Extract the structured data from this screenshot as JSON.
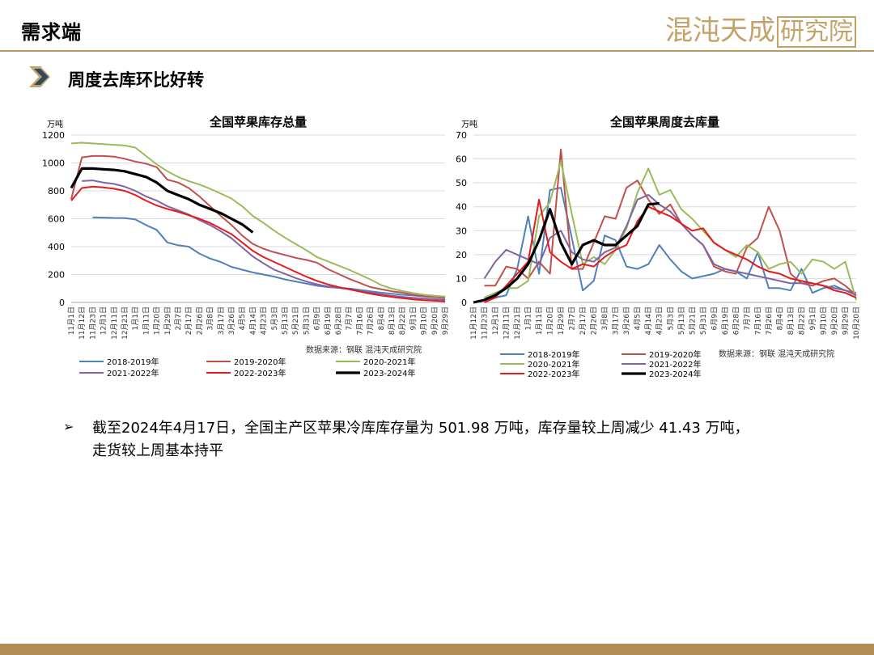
{
  "header": {
    "title": "需求端",
    "logo": "混沌天成研究院",
    "logo_main": "混沌天成",
    "logo_box": "研究院"
  },
  "section": {
    "title": "周度去库环比好转"
  },
  "colors": {
    "2018-2019年": "#4e81bd",
    "2019-2020年": "#c0504d",
    "2020-2021年": "#9bbb59",
    "2021-2022年": "#8064a2",
    "2022-2023年": "#e41a1c",
    "2023-2024年": "#000000",
    "accent": "#b89a5e"
  },
  "bullet": {
    "line1": "截至2024年4月17日，全国主产区苹果冷库库存量为 501.98 万吨，库存量较上周减少 41.43 万吨，",
    "line2": "走货较上周基本持平"
  },
  "chart_data": [
    {
      "type": "line",
      "title": "全国苹果库存总量",
      "ylabel": "万吨",
      "ylim": [
        0,
        1200
      ],
      "yticks": [
        0,
        200,
        400,
        600,
        800,
        1000,
        1200
      ],
      "xlabels": [
        "11月1日",
        "11月12日",
        "11月23日",
        "12月1日",
        "12月11日",
        "12月21日",
        "1月1日",
        "1月11日",
        "1月20日",
        "1月29日",
        "2月7日",
        "2月17日",
        "2月26日",
        "3月8日",
        "3月17日",
        "3月26日",
        "4月5日",
        "4月14日",
        "4月23日",
        "5月3日",
        "5月13日",
        "5月21日",
        "5月31日",
        "6月9日",
        "6月19日",
        "6月28日",
        "7月7日",
        "7月16日",
        "7月26日",
        "8月4日",
        "8月13日",
        "8月22日",
        "9月1日",
        "9月10日",
        "9月20日",
        "9月29日"
      ],
      "source": "数据来源：钢联  混沌天成研究院",
      "series": [
        {
          "name": "2018-2019年",
          "values": [
            null,
            null,
            610,
            608,
            606,
            605,
            595,
            555,
            520,
            430,
            410,
            400,
            350,
            315,
            290,
            255,
            235,
            215,
            200,
            185,
            165,
            150,
            135,
            120,
            110,
            105,
            100,
            90,
            80,
            70,
            62,
            55,
            50,
            43,
            38,
            32
          ]
        },
        {
          "name": "2019-2020年",
          "values": [
            740,
            1040,
            1050,
            1050,
            1045,
            1030,
            1010,
            995,
            970,
            880,
            860,
            820,
            760,
            690,
            620,
            555,
            480,
            420,
            385,
            360,
            340,
            320,
            305,
            285,
            240,
            205,
            170,
            140,
            110,
            95,
            80,
            70,
            55,
            45,
            40,
            35
          ]
        },
        {
          "name": "2020-2021年",
          "values": [
            1140,
            1145,
            1140,
            1135,
            1130,
            1125,
            1110,
            1050,
            990,
            940,
            900,
            870,
            845,
            815,
            780,
            745,
            690,
            620,
            570,
            515,
            465,
            420,
            375,
            325,
            295,
            265,
            235,
            200,
            165,
            125,
            100,
            82,
            68,
            55,
            48,
            42
          ]
        },
        {
          "name": "2021-2022年",
          "values": [
            null,
            870,
            875,
            860,
            850,
            830,
            800,
            760,
            730,
            690,
            660,
            630,
            590,
            555,
            510,
            460,
            395,
            330,
            280,
            235,
            205,
            175,
            150,
            130,
            115,
            105,
            95,
            82,
            70,
            58,
            48,
            40,
            33,
            28,
            24,
            20
          ]
        },
        {
          "name": "2022-2023年",
          "values": [
            730,
            820,
            830,
            825,
            815,
            800,
            770,
            730,
            695,
            670,
            650,
            625,
            600,
            570,
            530,
            490,
            430,
            370,
            325,
            290,
            255,
            220,
            185,
            155,
            130,
            110,
            95,
            78,
            62,
            50,
            40,
            30,
            22,
            16,
            12,
            8
          ]
        },
        {
          "name": "2023-2024年",
          "values": [
            820,
            960,
            960,
            955,
            950,
            940,
            920,
            900,
            860,
            800,
            770,
            740,
            700,
            670,
            640,
            600,
            560,
            501.98
          ]
        }
      ]
    },
    {
      "type": "line",
      "title": "全国苹果周度去库量",
      "ylabel": "万吨",
      "ylim": [
        0,
        70
      ],
      "yticks": [
        0,
        10,
        20,
        30,
        40,
        50,
        60,
        70
      ],
      "xlabels": [
        "11月12日",
        "11月23日",
        "12月1日",
        "12月11日",
        "12月21日",
        "1月1日",
        "1月11日",
        "1月20日",
        "1月29日",
        "2月7日",
        "2月17日",
        "2月26日",
        "3月8日",
        "3月17日",
        "3月26日",
        "4月5日",
        "4月14日",
        "4月23日",
        "5月3日",
        "5月13日",
        "5月21日",
        "5月31日",
        "6月9日",
        "6月19日",
        "6月28日",
        "7月7日",
        "7月16日",
        "7月26日",
        "8月4日",
        "8月13日",
        "8月22日",
        "9月1日",
        "9月10日",
        "9月20日",
        "9月29日",
        "10月20日"
      ],
      "source": "数据来源：钢联  混沌天成研究院",
      "series": [
        {
          "name": "2018-2019年",
          "values": [
            null,
            2,
            2,
            3,
            14,
            36,
            12,
            47,
            48,
            27,
            5,
            9,
            28,
            26,
            15,
            14,
            16,
            24,
            18,
            13,
            10,
            11,
            12,
            14,
            13,
            10,
            21,
            6,
            6,
            5,
            14,
            4,
            6,
            7,
            5,
            4
          ]
        },
        {
          "name": "2019-2020年",
          "values": [
            null,
            7,
            7,
            15,
            14,
            10,
            17,
            12,
            64,
            14,
            14,
            25,
            36,
            35,
            48,
            51,
            43,
            37,
            41,
            33,
            28,
            24,
            15,
            13,
            12,
            23,
            27,
            40,
            30,
            12,
            8,
            7,
            9,
            10,
            7,
            3
          ]
        },
        {
          "name": "2020-2021年",
          "values": [
            null,
            2,
            4,
            6,
            6,
            9,
            36,
            42,
            59,
            37,
            16,
            19,
            16,
            22,
            31,
            46,
            56,
            45,
            47,
            39,
            35,
            30,
            25,
            22,
            19,
            24,
            21,
            14,
            16,
            17,
            12,
            18,
            17,
            14,
            17,
            1
          ]
        },
        {
          "name": "2021-2022年",
          "values": [
            null,
            10,
            17,
            22,
            20,
            18,
            16,
            27,
            30,
            21,
            18,
            17,
            21,
            23,
            32,
            43,
            45,
            41,
            38,
            33,
            28,
            24,
            16,
            14,
            13,
            12,
            11,
            10,
            9,
            8,
            8,
            8,
            7,
            6,
            5,
            3
          ]
        },
        {
          "name": "2022-2023年",
          "values": [
            null,
            0,
            2,
            7,
            12,
            17,
            43,
            21,
            17,
            14,
            16,
            15,
            19,
            22,
            24,
            34,
            40,
            38,
            36,
            33,
            30,
            31,
            25,
            22,
            20,
            18,
            15,
            13,
            12,
            10,
            9,
            8,
            7,
            5,
            4,
            2
          ]
        },
        {
          "name": "2023-2024年",
          "values": [
            0,
            1,
            3,
            6,
            10,
            16,
            26,
            39,
            25,
            16,
            24,
            26,
            24,
            24,
            28,
            32,
            41,
            41.43
          ]
        }
      ]
    }
  ]
}
